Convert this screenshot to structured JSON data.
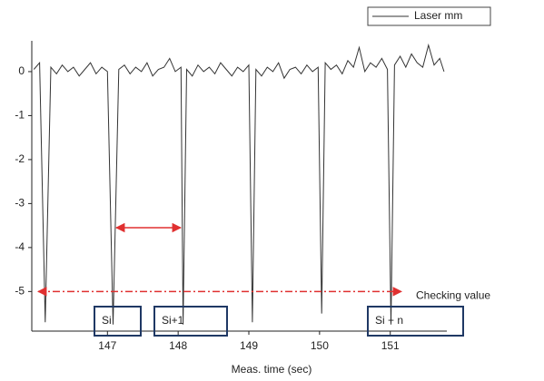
{
  "chart_data": {
    "type": "line",
    "xlabel": "Meas. time (sec)",
    "x": [
      145.96,
      146.04,
      146.12,
      146.2,
      146.28,
      146.36,
      146.44,
      146.52,
      146.6,
      146.68,
      146.76,
      146.84,
      146.92,
      147.0,
      147.08,
      147.16,
      147.24,
      147.32,
      147.4,
      147.48,
      147.56,
      147.64,
      147.72,
      147.8,
      147.88,
      147.96,
      148.04,
      148.07,
      148.12,
      148.2,
      148.28,
      148.36,
      148.44,
      148.52,
      148.6,
      148.68,
      148.76,
      148.84,
      148.92,
      149.0,
      149.05,
      149.1,
      149.18,
      149.26,
      149.34,
      149.42,
      149.5,
      149.58,
      149.66,
      149.74,
      149.82,
      149.9,
      149.98,
      150.03,
      150.08,
      150.16,
      150.24,
      150.32,
      150.4,
      150.48,
      150.56,
      150.64,
      150.72,
      150.8,
      150.88,
      150.96,
      151.01,
      151.06,
      151.14,
      151.22,
      151.3,
      151.38,
      151.46,
      151.54,
      151.62,
      151.7,
      151.76
    ],
    "series": [
      {
        "name": "Laser mm",
        "color": "#333333",
        "values": [
          0.05,
          0.2,
          -5.7,
          0.1,
          -0.05,
          0.15,
          0.0,
          0.1,
          -0.1,
          0.05,
          0.2,
          -0.05,
          0.1,
          0.0,
          -5.75,
          0.05,
          0.15,
          -0.05,
          0.1,
          0.0,
          0.2,
          -0.1,
          0.05,
          0.1,
          0.3,
          0.0,
          0.1,
          -5.75,
          0.05,
          -0.1,
          0.15,
          0.0,
          0.1,
          -0.05,
          0.2,
          0.05,
          -0.1,
          0.1,
          0.0,
          0.15,
          -5.7,
          0.05,
          -0.1,
          0.1,
          0.0,
          0.2,
          -0.15,
          0.05,
          0.1,
          -0.05,
          0.15,
          0.0,
          0.1,
          -5.5,
          0.2,
          0.05,
          0.15,
          -0.05,
          0.25,
          0.1,
          0.55,
          0.0,
          0.2,
          0.1,
          0.3,
          0.05,
          -5.75,
          0.15,
          0.35,
          0.1,
          0.4,
          0.2,
          0.1,
          0.6,
          0.15,
          0.3,
          0.0
        ]
      }
    ],
    "xlim": [
      145.93,
      151.8
    ],
    "ylim": [
      -5.9,
      0.7
    ],
    "xticks": [
      147,
      148,
      149,
      150,
      151
    ],
    "yticks": [
      0,
      -1,
      -2,
      -3,
      -4,
      -5
    ],
    "threshold": {
      "value": -5,
      "label": "Checking value"
    },
    "annotations": [
      "Si",
      "Si+1",
      "Si + n"
    ],
    "legend": "top-right"
  }
}
